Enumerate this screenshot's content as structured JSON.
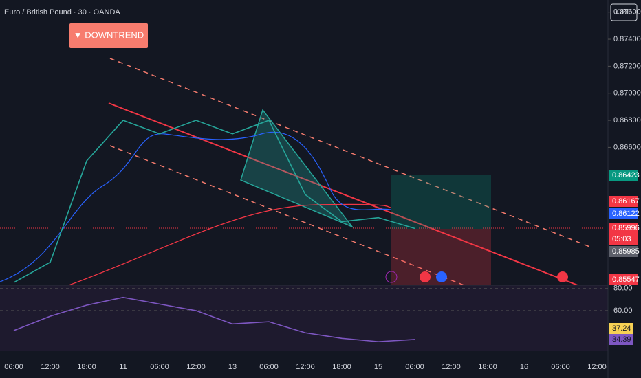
{
  "chart_data": {
    "type": "line",
    "title": "Euro / British Pound · 30 · OANDA",
    "currency": "GBP",
    "annotation": "▼ DOWNTREND",
    "categories": [
      "06:00",
      "12:00",
      "18:00",
      "11",
      "06:00",
      "12:00",
      "13",
      "06:00",
      "12:00",
      "18:00",
      "15",
      "06:00",
      "12:00",
      "18:00",
      "16",
      "06:00",
      "12:00"
    ],
    "series": [
      {
        "color": "#26a69a",
        "values": [
          0.856,
          0.8575,
          0.865,
          0.868,
          0.867,
          0.868,
          0.867,
          0.868,
          0.8625,
          0.8605,
          0.8608,
          0.86,
          null,
          null,
          null,
          null,
          null
        ]
      }
    ],
    "ylim": [
      0.8558,
      0.8769
    ],
    "yticks": [
      {
        "value": 0.876,
        "label": "0.87600"
      },
      {
        "value": 0.874,
        "label": "0.87400"
      },
      {
        "value": 0.872,
        "label": "0.87200"
      },
      {
        "value": 0.87,
        "label": "0.87000"
      },
      {
        "value": 0.868,
        "label": "0.86800"
      },
      {
        "value": 0.866,
        "label": "0.86600"
      }
    ],
    "price_labels": [
      {
        "label": "0.86423",
        "color": "#089981"
      },
      {
        "label": "0.86167",
        "color": "#f23645"
      },
      {
        "label": "0.86122",
        "color": "#2962ff"
      },
      {
        "label": "0.85996",
        "color": "#f23645"
      },
      {
        "label": "05:03",
        "color": "#f23645"
      },
      {
        "label": "0.85985",
        "color": "#5d606b"
      },
      {
        "label": "0.85547",
        "color": "#f23645"
      }
    ],
    "rsi": {
      "color": "#7e57c2",
      "values": [
        42,
        55,
        65,
        72,
        66,
        60,
        48,
        50,
        40,
        35,
        32,
        34,
        null,
        null,
        null,
        null,
        null
      ],
      "ylim": [
        24,
        83
      ],
      "yticks": [
        {
          "value": 80,
          "label": "80.00"
        },
        {
          "value": 60,
          "label": "60.00"
        }
      ],
      "labels": [
        {
          "label": "37.24",
          "color": "#f7d154"
        },
        {
          "label": "34.39",
          "color": "#7e57c2"
        }
      ]
    }
  }
}
